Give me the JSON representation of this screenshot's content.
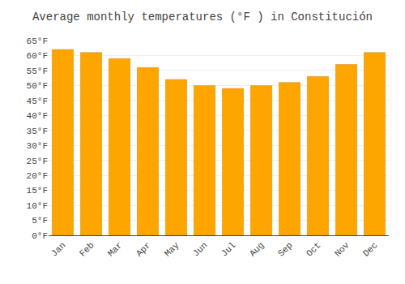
{
  "chart_data": {
    "type": "bar",
    "title": "Average monthly temperatures (°F ) in Constitución",
    "categories": [
      "Jan",
      "Feb",
      "Mar",
      "Apr",
      "May",
      "Jun",
      "Jul",
      "Aug",
      "Sep",
      "Oct",
      "Nov",
      "Dec"
    ],
    "values": [
      62,
      61,
      59,
      56,
      52,
      50,
      49,
      50,
      51,
      53,
      57,
      61
    ],
    "color": "#FFA500",
    "ylim": [
      0,
      65
    ],
    "yticks": [
      {
        "value": 0,
        "label": "0°F"
      },
      {
        "value": 5,
        "label": "5°F"
      },
      {
        "value": 10,
        "label": "10°F"
      },
      {
        "value": 15,
        "label": "15°F"
      },
      {
        "value": 20,
        "label": "20°F"
      },
      {
        "value": 25,
        "label": "25°F"
      },
      {
        "value": 30,
        "label": "30°F"
      },
      {
        "value": 35,
        "label": "35°F"
      },
      {
        "value": 40,
        "label": "40°F"
      },
      {
        "value": 45,
        "label": "45°F"
      },
      {
        "value": 50,
        "label": "50°F"
      },
      {
        "value": 55,
        "label": "55°F"
      },
      {
        "value": 60,
        "label": "60°F"
      },
      {
        "value": 65,
        "label": "65°F"
      }
    ],
    "grid": true
  }
}
